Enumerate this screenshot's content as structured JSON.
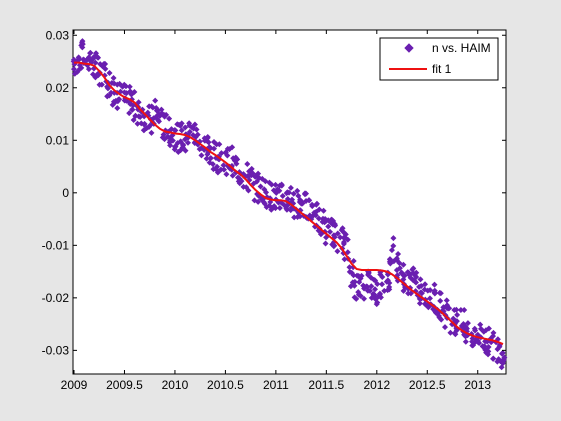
{
  "chart_data": {
    "type": "scatter",
    "title": "",
    "xlabel": "",
    "ylabel": "",
    "xlim": [
      2008.99,
      2013.28
    ],
    "ylim": [
      -0.0345,
      0.031
    ],
    "x_ticks": [
      2009,
      2009.5,
      2010,
      2010.5,
      2011,
      2011.5,
      2012,
      2012.5,
      2013
    ],
    "x_tick_labels": [
      "2009",
      "2009.5",
      "2010",
      "2010.5",
      "2011",
      "2011.5",
      "2012",
      "2012.5",
      "2013"
    ],
    "y_ticks": [
      0.03,
      0.02,
      0.01,
      0,
      -0.01,
      -0.02,
      -0.03
    ],
    "y_tick_labels": [
      "0.03",
      "0.02",
      "0.01",
      "0",
      "-0.01",
      "-0.02",
      "-0.03"
    ],
    "grid": false,
    "legend_position": "top-right",
    "colors": {
      "scatter": "#6a1fb0",
      "fit": "#ee1111",
      "background": "#e6e6e6",
      "axes": "#ffffff"
    },
    "series": [
      {
        "name": "n vs. HAIM",
        "type": "scatter",
        "marker": "diamond",
        "note_trend": "points scattered around fit with approx. ±0.003 spread",
        "x": [
          2009.0,
          2009.05,
          2009.1,
          2009.15,
          2009.2,
          2009.25,
          2009.3,
          2009.35,
          2009.4,
          2009.45,
          2009.5,
          2009.55,
          2009.6,
          2009.65,
          2009.7,
          2009.75,
          2009.8,
          2009.85,
          2009.9,
          2009.95,
          2010.0,
          2010.05,
          2010.1,
          2010.15,
          2010.2,
          2010.25,
          2010.3,
          2010.35,
          2010.4,
          2010.45,
          2010.5,
          2010.55,
          2010.6,
          2010.65,
          2010.7,
          2010.75,
          2010.8,
          2010.85,
          2010.9,
          2010.95,
          2011.0,
          2011.05,
          2011.1,
          2011.15,
          2011.2,
          2011.25,
          2011.3,
          2011.35,
          2011.4,
          2011.45,
          2011.5,
          2011.55,
          2011.6,
          2011.65,
          2011.7,
          2011.75,
          2011.8,
          2011.85,
          2011.9,
          2011.95,
          2012.0,
          2012.05,
          2012.1,
          2012.15,
          2012.2,
          2012.25,
          2012.3,
          2012.35,
          2012.4,
          2012.45,
          2012.5,
          2012.55,
          2012.6,
          2012.65,
          2012.7,
          2012.75,
          2012.8,
          2012.85,
          2012.9,
          2012.95,
          2013.0,
          2013.05,
          2013.1,
          2013.15,
          2013.2,
          2013.25
        ],
        "y": [
          0.025,
          0.0255,
          0.0262,
          0.0258,
          0.024,
          0.0232,
          0.0225,
          0.021,
          0.0195,
          0.0185,
          0.018,
          0.0175,
          0.0165,
          0.015,
          0.0145,
          0.014,
          0.015,
          0.0145,
          0.0125,
          0.0115,
          0.011,
          0.0105,
          0.01,
          0.0115,
          0.011,
          0.0095,
          0.0088,
          0.008,
          0.0072,
          0.0065,
          0.0062,
          0.006,
          0.005,
          0.004,
          0.003,
          0.0025,
          0.001,
          0.001,
          0.0,
          -0.0005,
          -0.0008,
          -0.001,
          -0.0012,
          -0.0015,
          -0.002,
          -0.002,
          -0.0028,
          -0.0035,
          -0.0045,
          -0.0055,
          -0.007,
          -0.0075,
          -0.0085,
          -0.009,
          -0.01,
          -0.0155,
          -0.0175,
          -0.018,
          -0.0165,
          -0.018,
          -0.0185,
          -0.0175,
          -0.017,
          -0.011,
          -0.014,
          -0.016,
          -0.0165,
          -0.017,
          -0.0175,
          -0.0185,
          -0.0195,
          -0.02,
          -0.021,
          -0.0215,
          -0.023,
          -0.024,
          -0.0245,
          -0.025,
          -0.0265,
          -0.027,
          -0.0275,
          -0.028,
          -0.0285,
          -0.029,
          -0.0295,
          -0.0305
        ]
      },
      {
        "name": "fit 1",
        "type": "line",
        "x": [
          2009.0,
          2009.05,
          2009.1,
          2009.15,
          2009.2,
          2009.25,
          2009.3,
          2009.35,
          2009.4,
          2009.45,
          2009.5,
          2009.55,
          2009.6,
          2009.65,
          2009.7,
          2009.75,
          2009.8,
          2009.85,
          2009.9,
          2009.95,
          2010.0,
          2010.05,
          2010.1,
          2010.15,
          2010.2,
          2010.25,
          2010.3,
          2010.35,
          2010.4,
          2010.45,
          2010.5,
          2010.55,
          2010.6,
          2010.65,
          2010.7,
          2010.75,
          2010.8,
          2010.85,
          2010.9,
          2010.95,
          2011.0,
          2011.05,
          2011.1,
          2011.15,
          2011.2,
          2011.25,
          2011.3,
          2011.35,
          2011.4,
          2011.45,
          2011.5,
          2011.55,
          2011.6,
          2011.65,
          2011.7,
          2011.75,
          2011.8,
          2011.85,
          2011.9,
          2011.95,
          2012.0,
          2012.05,
          2012.1,
          2012.15,
          2012.2,
          2012.25,
          2012.3,
          2012.35,
          2012.4,
          2012.45,
          2012.5,
          2012.55,
          2012.6,
          2012.65,
          2012.7,
          2012.75,
          2012.8,
          2012.85,
          2012.9,
          2012.95,
          2013.0,
          2013.05,
          2013.1,
          2013.15,
          2013.2,
          2013.25
        ],
        "y": [
          0.0248,
          0.0248,
          0.0246,
          0.0245,
          0.0242,
          0.0232,
          0.022,
          0.0205,
          0.0195,
          0.0188,
          0.0182,
          0.0178,
          0.0172,
          0.016,
          0.015,
          0.014,
          0.013,
          0.0122,
          0.0117,
          0.0115,
          0.0113,
          0.0112,
          0.011,
          0.0106,
          0.01,
          0.0093,
          0.0086,
          0.0078,
          0.0072,
          0.0065,
          0.0058,
          0.005,
          0.0042,
          0.0035,
          0.0026,
          0.0015,
          0.0005,
          -0.0003,
          -0.001,
          -0.0013,
          -0.0014,
          -0.0014,
          -0.0016,
          -0.0022,
          -0.003,
          -0.0038,
          -0.0046,
          -0.0054,
          -0.0062,
          -0.007,
          -0.0078,
          -0.0086,
          -0.0094,
          -0.0105,
          -0.012,
          -0.0135,
          -0.0145,
          -0.0147,
          -0.0147,
          -0.0147,
          -0.0147,
          -0.0148,
          -0.015,
          -0.0155,
          -0.0162,
          -0.017,
          -0.0178,
          -0.0186,
          -0.0193,
          -0.02,
          -0.0207,
          -0.0214,
          -0.0221,
          -0.0229,
          -0.0238,
          -0.0247,
          -0.0256,
          -0.0263,
          -0.0268,
          -0.0272,
          -0.0275,
          -0.0277,
          -0.0279,
          -0.0281,
          -0.0284,
          -0.0288
        ]
      }
    ],
    "legend": [
      {
        "label": "n vs. HAIM",
        "series": 0
      },
      {
        "label": "fit 1",
        "series": 1
      }
    ]
  }
}
